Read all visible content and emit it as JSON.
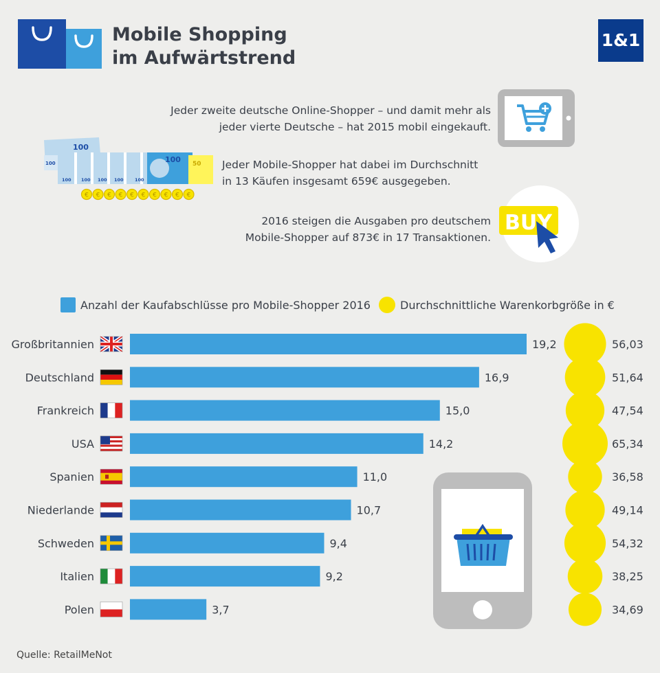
{
  "header": {
    "title_line1": "Mobile Shopping",
    "title_line2": "im Aufwärtstrend",
    "logo": "1&1"
  },
  "facts": {
    "fact1_line1": "Jeder zweite deutsche Online-Shopper – und damit mehr als",
    "fact1_line2": "jeder vierte Deutsche – hat 2015 mobil eingekauft.",
    "fact2_line1": "Jeder Mobile-Shopper hat dabei im Durchschnitt",
    "fact2_line2": "in 13 Käufen insgesamt 659€ ausgegeben.",
    "fact3_line1": "2016 steigen die Ausgaben pro deutschem",
    "fact3_line2": "Mobile-Shopper auf 873€ in 17 Transaktionen."
  },
  "illustrations": {
    "tablet_icon": "shopping-cart-tablet-icon",
    "money_icon": "banknotes-coins-icon",
    "buy_icon": "buy-button-cursor-icon",
    "buy_label": "BUY",
    "phone_icon": "phone-basket-icon",
    "banknote_100": "100",
    "banknote_50": "50",
    "coin_symbol": "€"
  },
  "legend": {
    "bars_label": "Anzahl der Kaufabschlüsse pro Mobile-Shopper 2016",
    "circles_label": "Durchschnittliche Warenkorbgröße in €"
  },
  "chart_data": {
    "type": "bar",
    "orientation": "horizontal",
    "categories": [
      "Großbritannien",
      "Deutschland",
      "Frankreich",
      "USA",
      "Spanien",
      "Niederlande",
      "Schweden",
      "Italien",
      "Polen"
    ],
    "flags": [
      "uk",
      "de",
      "fr",
      "us",
      "es",
      "nl",
      "se",
      "it",
      "pl"
    ],
    "series": [
      {
        "name": "Anzahl der Kaufabschlüsse pro Mobile-Shopper 2016",
        "values": [
          19.2,
          16.9,
          15.0,
          14.2,
          11.0,
          10.7,
          9.4,
          9.2,
          3.7
        ],
        "labels": [
          "19,2",
          "16,9",
          "15,0",
          "14,2",
          "11,0",
          "10,7",
          "9,4",
          "9,2",
          "3,7"
        ],
        "color": "#3ea0dc",
        "mark": "bar"
      },
      {
        "name": "Durchschnittliche Warenkorbgröße in €",
        "values": [
          56.03,
          51.64,
          47.54,
          65.34,
          36.58,
          49.14,
          54.32,
          38.25,
          34.69
        ],
        "labels": [
          "56,03",
          "51,64",
          "47,54",
          "65,34",
          "36,58",
          "49,14",
          "54,32",
          "38,25",
          "34,69"
        ],
        "color": "#f8e300",
        "mark": "circle"
      }
    ],
    "xlim": [
      0,
      19.2
    ],
    "grid": false,
    "legend_position": "top"
  },
  "footer": {
    "source": "Quelle: RetailMeNot"
  },
  "colors": {
    "background": "#eeeeec",
    "bar": "#3ea0dc",
    "circle": "#f8e300",
    "logo": "#0a3b8c",
    "text": "#3a3f48"
  }
}
